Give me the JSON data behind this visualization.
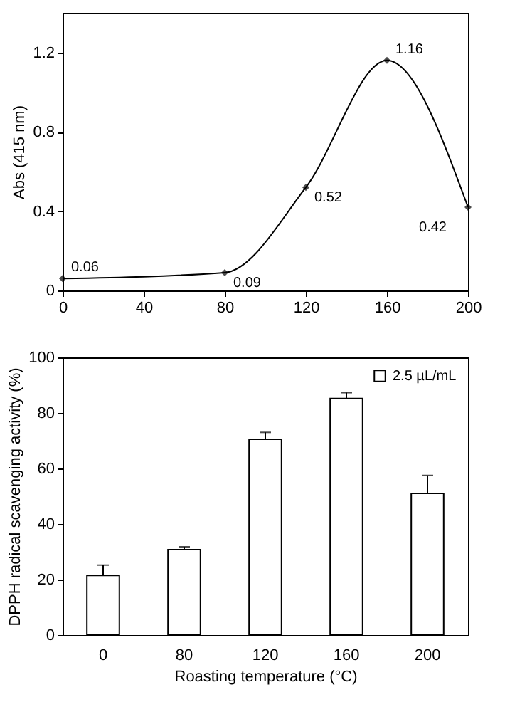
{
  "chart_data": [
    {
      "type": "line",
      "ylabel": "Abs (415 nm)",
      "x": [
        0,
        80,
        120,
        160,
        200
      ],
      "xlim": [
        0,
        200
      ],
      "xticks": [
        0,
        40,
        80,
        120,
        160,
        200
      ],
      "ylim": [
        0,
        1.4
      ],
      "yticks": [
        0,
        0.4,
        0.8,
        1.2
      ],
      "grid": false,
      "marker": "diamond",
      "line_style": "solid",
      "data_labels": true,
      "series": [
        {
          "color": "#000000",
          "values": [
            0.06,
            0.09,
            0.52,
            1.16,
            0.42
          ]
        }
      ]
    },
    {
      "type": "bar",
      "xlabel": "Roasting temperature (°C)",
      "ylabel": "DPPH radical scavenging activity (%)",
      "categories": [
        "0",
        "80",
        "120",
        "160",
        "200"
      ],
      "ylim": [
        0,
        100
      ],
      "yticks": [
        0,
        20,
        40,
        60,
        80,
        100
      ],
      "grid": false,
      "legend": "top right",
      "series": [
        {
          "name": "2.5 µL/mL",
          "color": "#ffffff",
          "values": [
            21.5,
            30.8,
            70.5,
            85.2,
            51
          ],
          "errors": [
            [
              21.5,
              25.2
            ],
            [
              30.8,
              31.8
            ],
            [
              70.5,
              73
            ],
            [
              85.2,
              87.3
            ],
            [
              51,
              57.5
            ]
          ]
        }
      ]
    }
  ]
}
